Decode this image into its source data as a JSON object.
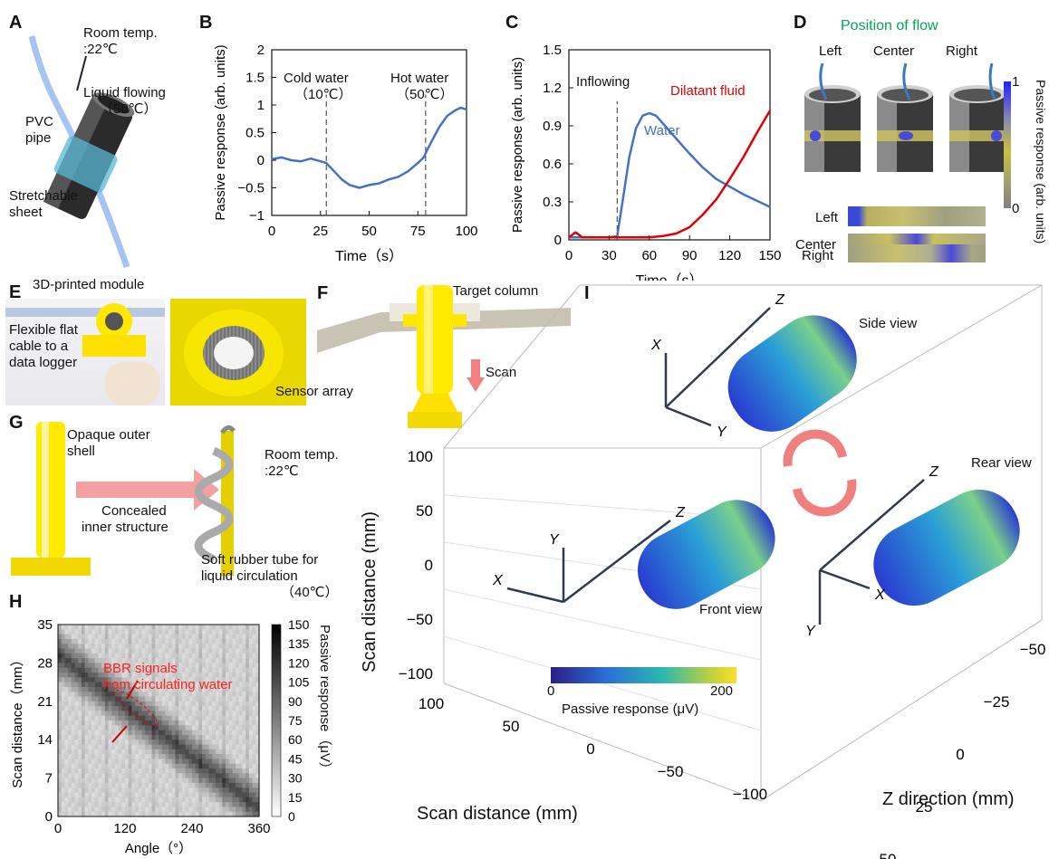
{
  "panels": {
    "A": {
      "label": "A",
      "room_temp": "Room temp.",
      "room_temp_val": ":22℃",
      "liquid": "Liquid flowing",
      "liquid_temp": "（50℃）",
      "pipe": "PVC",
      "pipe2": "pipe",
      "sheet": "Stretchable",
      "sheet2": "sheet"
    },
    "B": {
      "label": "B",
      "cold": "Cold water",
      "cold_temp": "（10℃）",
      "hot": "Hot water",
      "hot_temp": "（50℃）"
    },
    "C": {
      "label": "C",
      "inflowing": "Inflowing",
      "water": "Water",
      "dilatant": "Dilatant fluid"
    },
    "D": {
      "label": "D",
      "title": "Position of flow",
      "positions": [
        "Left",
        "Center",
        "Right"
      ],
      "rows": [
        "Left",
        "Center",
        "Right"
      ],
      "cbar_label": "Passive response (arb. units)",
      "cbar_max": "1",
      "cbar_min": "0"
    },
    "E": {
      "label": "E",
      "module": "3D-printed module",
      "cable1": "Flexible flat",
      "cable2": "cable to a",
      "cable3": "data logger",
      "sensor": "Sensor array"
    },
    "F": {
      "label": "F",
      "target": "Target column",
      "scan": "Scan"
    },
    "G": {
      "label": "G",
      "shell1": "Opaque outer",
      "shell2": "shell",
      "concealed1": "Concealed",
      "concealed2": "inner structure",
      "room_temp": "Room temp.",
      "room_temp_val": ":22℃",
      "tube1": "Soft rubber tube for",
      "tube2": "liquid circulation",
      "tube_temp": "（40℃）"
    },
    "H": {
      "label": "H",
      "annot1": "BBR signals",
      "annot2": "from circulating water",
      "cbar_label": "Passive response（μV）",
      "cbar_ticks": [
        "150",
        "135",
        "120",
        "105",
        "90",
        "75",
        "60",
        "45",
        "30",
        "15",
        "0"
      ]
    },
    "I": {
      "label": "I",
      "side": "Side view",
      "rear": "Rear view",
      "front": "Front view",
      "axis_x": "X",
      "axis_y": "Y",
      "axis_z": "Z",
      "vert_label": "Scan distance (mm)",
      "vert_ticks": [
        "100",
        "50",
        "0",
        "−50",
        "−100"
      ],
      "bottom_label": "Scan distance (mm)",
      "bottom_ticks": [
        "100",
        "50",
        "0",
        "−50",
        "−100"
      ],
      "z_label": "Z direction (mm)",
      "z_ticks": [
        "−50",
        "−25",
        "0",
        "25",
        "50"
      ],
      "cbar_label": "Passive response (μV)",
      "cbar_min": "0",
      "cbar_max": "200"
    }
  },
  "chart_data": [
    {
      "type": "line",
      "panel": "B",
      "xlabel": "Time（s）",
      "ylabel": "Passive response (arb. units)",
      "xlim": [
        0,
        100
      ],
      "ylim": [
        -1,
        2
      ],
      "xticks": [
        "0",
        "25",
        "50",
        "75",
        "100"
      ],
      "yticks": [
        "2",
        "1.5",
        "1",
        "0.5",
        "0",
        "−0.5",
        "−1"
      ],
      "vlines": [
        28,
        79
      ],
      "series": [
        {
          "color": "#4472c4",
          "x": [
            0,
            5,
            10,
            15,
            20,
            25,
            28,
            32,
            36,
            40,
            45,
            50,
            55,
            60,
            65,
            70,
            75,
            78,
            80,
            83,
            86,
            90,
            94,
            97,
            100
          ],
          "y": [
            0.02,
            0.05,
            0.0,
            -0.02,
            0.03,
            -0.02,
            -0.05,
            -0.2,
            -0.35,
            -0.45,
            -0.5,
            -0.45,
            -0.42,
            -0.35,
            -0.3,
            -0.2,
            -0.05,
            0.05,
            0.2,
            0.4,
            0.6,
            0.8,
            0.9,
            0.95,
            0.92
          ]
        }
      ]
    },
    {
      "type": "line",
      "panel": "C",
      "xlabel": "Time（s）",
      "ylabel": "Passive response (arb. units)",
      "xlim": [
        0,
        150
      ],
      "ylim": [
        0,
        1.5
      ],
      "xticks": [
        "0",
        "30",
        "60",
        "90",
        "120",
        "150"
      ],
      "yticks": [
        "1.5",
        "1.2",
        "0.9",
        "0.6",
        "0.3",
        "0"
      ],
      "vlines": [
        36
      ],
      "series": [
        {
          "name": "Water",
          "color": "#4472c4",
          "x": [
            0,
            30,
            36,
            40,
            45,
            50,
            55,
            60,
            65,
            70,
            80,
            90,
            100,
            110,
            120,
            130,
            140,
            150
          ],
          "y": [
            0.02,
            0.02,
            0.03,
            0.3,
            0.65,
            0.88,
            0.98,
            1.0,
            0.98,
            0.92,
            0.8,
            0.68,
            0.57,
            0.48,
            0.42,
            0.36,
            0.31,
            0.26
          ]
        },
        {
          "name": "Dilatant fluid",
          "color": "#e00000",
          "x": [
            0,
            5,
            10,
            30,
            40,
            60,
            70,
            80,
            90,
            100,
            110,
            120,
            130,
            140,
            150
          ],
          "y": [
            0.02,
            0.06,
            0.02,
            0.02,
            0.02,
            0.02,
            0.03,
            0.05,
            0.1,
            0.2,
            0.32,
            0.48,
            0.65,
            0.84,
            1.02
          ]
        }
      ]
    },
    {
      "type": "heatmap",
      "panel": "H",
      "xlabel": "Angle（°）",
      "ylabel": "Scan distance（mm）",
      "xlim": [
        0,
        360
      ],
      "ylim": [
        0,
        35
      ],
      "xticks": [
        "0",
        "120",
        "240",
        "360"
      ],
      "yticks": [
        "35",
        "28",
        "21",
        "14",
        "7",
        "0"
      ],
      "colorbar_range": [
        0,
        150
      ]
    }
  ]
}
